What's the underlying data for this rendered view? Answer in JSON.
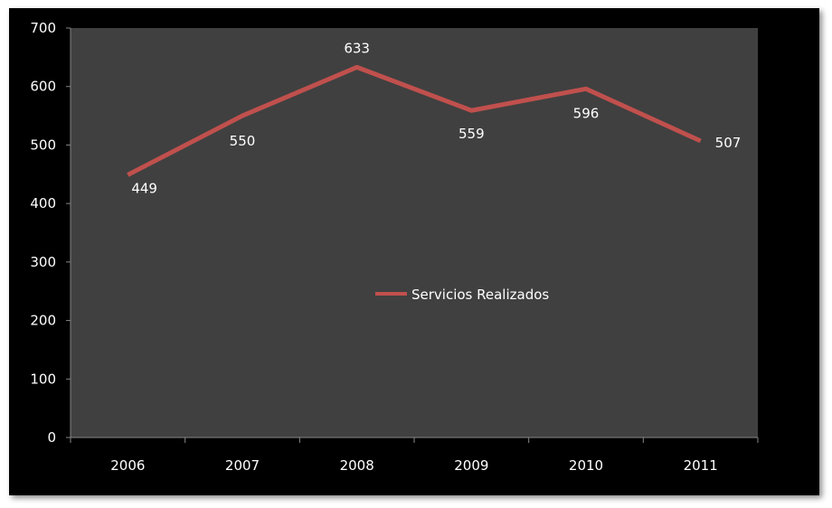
{
  "chart_data": {
    "type": "line",
    "title": "",
    "xlabel": "",
    "ylabel": "",
    "categories": [
      "2006",
      "2007",
      "2008",
      "2009",
      "2010",
      "2011"
    ],
    "series": [
      {
        "name": "Servicios Realizados",
        "values": [
          449,
          550,
          633,
          559,
          596,
          507
        ],
        "color": "#c0504d"
      }
    ],
    "ylim": [
      0,
      700
    ],
    "yticks": [
      0,
      100,
      200,
      300,
      400,
      500,
      600,
      700
    ],
    "legend": "center",
    "grid": false,
    "plot_background": "#404040"
  }
}
